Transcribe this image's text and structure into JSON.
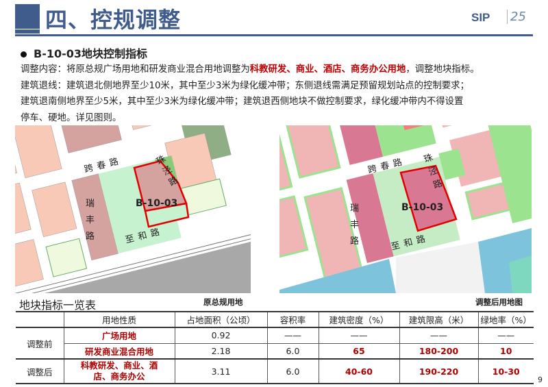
{
  "header": {
    "title": "四、控规调整",
    "logo_text": "SIP",
    "logo_mark": "25"
  },
  "subtitle": "B-10-03地块控制指标",
  "paragraph": {
    "line1_a": "调整内容：将原总规广场用地和研发商业混合用地调整为",
    "line1_red": "科教研发、商业、酒店、商务办公用地",
    "line1_b": "，调整地块指标。",
    "line2": "建筑退线：建筑退北侧地界至少10米，其中至少3米为绿化缓冲带；东侧退线需满足预留规划站点的控制要求；",
    "line3": "建筑退南侧地界至少5米，其中至少3米为绿化缓冲带；建筑退西侧地块不做控制要求，绿化缓冲带内不得设置",
    "line4": "停车、硬地。详见图则。"
  },
  "maps": {
    "plot_label": "B-10-03",
    "roads": {
      "north": "跨春路",
      "east": "珠泾路",
      "west": "瑞丰路",
      "south": "至和路"
    },
    "left_caption": "原总规用地",
    "right_caption": "调整后用地图",
    "colors": {
      "boundary": "#e00000",
      "residential": "#f7c9b6",
      "commercial_left": "#d4a3a0",
      "green": "#c6f2cf",
      "commercial_right": "#d97892",
      "pink_right": "#f0b6b6",
      "green_right": "#9be38f",
      "water": "#7ec3dc",
      "rail": "#a8a8a8"
    }
  },
  "table": {
    "title": "地块指标一览表",
    "headers": [
      "",
      "用地性质",
      "占地面积（公顷）",
      "容积率",
      "建筑密度（%）",
      "建筑限高（米）",
      "绿地率（%）"
    ],
    "groups": [
      {
        "label": "调整前",
        "rows": [
          [
            "广场用地",
            "0.92",
            "——",
            "——",
            "——",
            "——"
          ],
          [
            "研发商业混合用地",
            "2.18",
            "6.0",
            "65",
            "180-200",
            "10"
          ]
        ]
      },
      {
        "label": "调整后",
        "rows": [
          [
            "科教研发、商业、酒店、商务办公",
            "3.11",
            "6.0",
            "40-60",
            "190-220",
            "10-30"
          ]
        ]
      }
    ]
  },
  "page_number": "9"
}
